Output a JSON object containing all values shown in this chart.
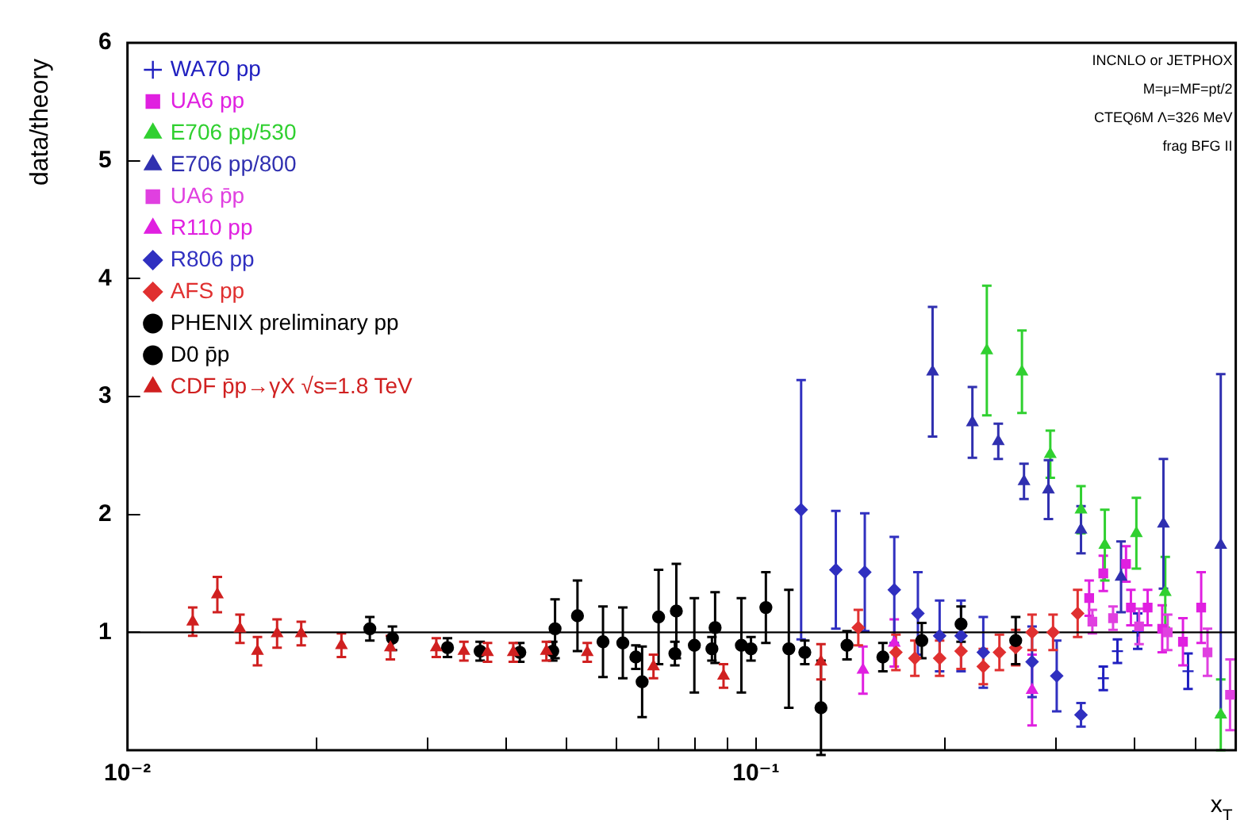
{
  "chart_data": {
    "type": "scatter",
    "ylabel": "data/theory",
    "xlabel": "x$_{T}$",
    "log": "x",
    "xlim": [
      0.01,
      0.58
    ],
    "ylim": [
      0,
      6
    ],
    "xticks": [
      {
        "value": 0.01,
        "label": "10⁻²"
      },
      {
        "value": 0.02,
        "label": null
      },
      {
        "value": 0.03,
        "label": null
      },
      {
        "value": 0.04,
        "label": null
      },
      {
        "value": 0.05,
        "label": null
      },
      {
        "value": 0.06,
        "label": null
      },
      {
        "value": 0.07,
        "label": null
      },
      {
        "value": 0.08,
        "label": null
      },
      {
        "value": 0.09,
        "label": null
      },
      {
        "value": 0.1,
        "label": "10⁻¹"
      },
      {
        "value": 0.2,
        "label": null
      },
      {
        "value": 0.3,
        "label": null
      },
      {
        "value": 0.4,
        "label": null
      },
      {
        "value": 0.5,
        "label": null
      }
    ],
    "yticks": [
      {
        "value": 0,
        "label": null
      },
      1,
      2,
      3,
      4,
      5,
      6
    ],
    "grid": false,
    "legend": "top left",
    "ref_lines": [
      {
        "axis": "y",
        "value": 1,
        "color": "#000000"
      }
    ],
    "annotations": [
      "INCNLO or JETPHOX",
      "M=μ=MF=pt/2",
      "CTEQ6M Λ=326 MeV",
      "frag BFG II"
    ],
    "series": [
      {
        "name": "WA70 pp",
        "color": "#2020c0",
        "marker": "cross",
        "x": [
          0.357,
          0.376,
          0.405,
          0.487
        ],
        "values": [
          0.61,
          0.84,
          1.01,
          0.67
        ],
        "errors": [
          0.1,
          0.1,
          0.15,
          0.15
        ]
      },
      {
        "name": "UA6 pp",
        "color": "#e020e0",
        "marker": "square",
        "x": [
          0.339,
          0.357,
          0.388,
          0.395,
          0.42,
          0.443,
          0.478,
          0.511
        ],
        "values": [
          1.29,
          1.5,
          1.58,
          1.21,
          1.21,
          1.03,
          0.92,
          1.21
        ],
        "errors": [
          0.15,
          0.15,
          0.15,
          0.15,
          0.15,
          0.2,
          0.2,
          0.3
        ]
      },
      {
        "name": "E706 pp/530",
        "color": "#30d030",
        "marker": "triangle",
        "x": [
          0.233,
          0.265,
          0.294,
          0.329,
          0.359,
          0.403,
          0.448,
          0.549
        ],
        "values": [
          3.39,
          3.21,
          2.51,
          2.04,
          1.74,
          1.84,
          1.34,
          0.3
        ],
        "errors": [
          0.55,
          0.35,
          0.2,
          0.2,
          0.3,
          0.3,
          0.3,
          0.3
        ]
      },
      {
        "name": "E706 pp/800",
        "color": "#3030b0",
        "marker": "triangle",
        "x": [
          0.191,
          0.221,
          0.243,
          0.267,
          0.292,
          0.329,
          0.381,
          0.445,
          0.549
        ],
        "values": [
          3.21,
          2.78,
          2.62,
          2.28,
          2.21,
          1.87,
          1.47,
          1.92,
          1.74
        ],
        "errors": [
          0.55,
          0.3,
          0.15,
          0.15,
          0.25,
          0.2,
          0.3,
          0.55,
          1.45
        ]
      },
      {
        "name": "UA6 p̄p",
        "color": "#e040e0",
        "marker": "square",
        "x": [
          0.343,
          0.37,
          0.407,
          0.452,
          0.523,
          0.568
        ],
        "values": [
          1.09,
          1.12,
          1.05,
          1.0,
          0.83,
          0.47
        ],
        "errors": [
          0.1,
          0.1,
          0.15,
          0.15,
          0.2,
          0.3
        ]
      },
      {
        "name": "R110 pp",
        "color": "#e020e0",
        "marker": "triangle",
        "x": [
          0.148,
          0.166,
          0.275
        ],
        "values": [
          0.68,
          0.91,
          0.51
        ],
        "errors": [
          0.2,
          0.2,
          0.3
        ]
      },
      {
        "name": "R806 pp",
        "color": "#3030c0",
        "marker": "diamond",
        "x": [
          0.118,
          0.134,
          0.149,
          0.166,
          0.181,
          0.196,
          0.212,
          0.23,
          0.275,
          0.301,
          0.329
        ],
        "values": [
          2.04,
          1.53,
          1.51,
          1.36,
          1.16,
          0.97,
          0.97,
          0.83,
          0.75,
          0.63,
          0.3
        ],
        "errors": [
          1.1,
          0.5,
          0.5,
          0.45,
          0.35,
          0.3,
          0.3,
          0.3,
          0.3,
          0.3,
          0.1
        ]
      },
      {
        "name": "AFS pp",
        "color": "#e03030",
        "marker": "diamond",
        "x": [
          0.1455,
          0.167,
          0.179,
          0.196,
          0.212,
          0.23,
          0.244,
          0.259,
          0.275,
          0.297,
          0.325
        ],
        "values": [
          1.04,
          0.83,
          0.78,
          0.78,
          0.84,
          0.71,
          0.83,
          0.87,
          1.0,
          1.0,
          1.16
        ],
        "errors": [
          0.15,
          0.15,
          0.15,
          0.15,
          0.15,
          0.15,
          0.15,
          0.15,
          0.15,
          0.15,
          0.2
        ]
      },
      {
        "name": "PHENIX preliminary pp",
        "color": "#000000",
        "marker": "circle",
        "x": [
          0.0479,
          0.052,
          0.0571,
          0.0614,
          0.0659,
          0.07,
          0.0747,
          0.0798,
          0.0861,
          0.0948,
          0.1037,
          0.1128,
          0.1269
        ],
        "values": [
          1.03,
          1.14,
          0.92,
          0.91,
          0.58,
          1.13,
          1.18,
          0.89,
          1.04,
          0.89,
          1.21,
          0.86,
          0.36
        ],
        "errors": [
          0.25,
          0.3,
          0.3,
          0.3,
          0.3,
          0.4,
          0.4,
          0.4,
          0.3,
          0.4,
          0.3,
          0.5,
          0.4
        ]
      },
      {
        "name": "D0 p̄p",
        "color": "#000000",
        "marker": "circle",
        "x": [
          0.0243,
          0.0264,
          0.0323,
          0.0364,
          0.0421,
          0.0475,
          0.0644,
          0.0743,
          0.0851,
          0.0982,
          0.1196,
          0.1396,
          0.1592,
          0.1836,
          0.212,
          0.259
        ],
        "values": [
          1.03,
          0.95,
          0.87,
          0.84,
          0.83,
          0.84,
          0.79,
          0.82,
          0.86,
          0.86,
          0.83,
          0.89,
          0.79,
          0.93,
          1.07,
          0.93
        ],
        "errors": [
          0.1,
          0.1,
          0.08,
          0.08,
          0.08,
          0.08,
          0.1,
          0.1,
          0.1,
          0.1,
          0.1,
          0.12,
          0.12,
          0.15,
          0.15,
          0.2
        ]
      },
      {
        "name": "CDF p̄p→γX √s=1.8 TeV",
        "color": "#d02020",
        "marker": "triangle",
        "x": [
          0.0127,
          0.0139,
          0.0151,
          0.0161,
          0.0173,
          0.0189,
          0.0219,
          0.0262,
          0.031,
          0.0343,
          0.0374,
          0.0411,
          0.0464,
          0.0539,
          0.0687,
          0.0888,
          0.1269
        ],
        "values": [
          1.09,
          1.32,
          1.03,
          0.84,
          0.99,
          0.99,
          0.89,
          0.87,
          0.87,
          0.84,
          0.83,
          0.83,
          0.84,
          0.83,
          0.71,
          0.63,
          0.75
        ],
        "errors": [
          0.12,
          0.15,
          0.12,
          0.12,
          0.12,
          0.1,
          0.1,
          0.1,
          0.08,
          0.08,
          0.08,
          0.08,
          0.08,
          0.08,
          0.1,
          0.1,
          0.15
        ]
      }
    ]
  }
}
